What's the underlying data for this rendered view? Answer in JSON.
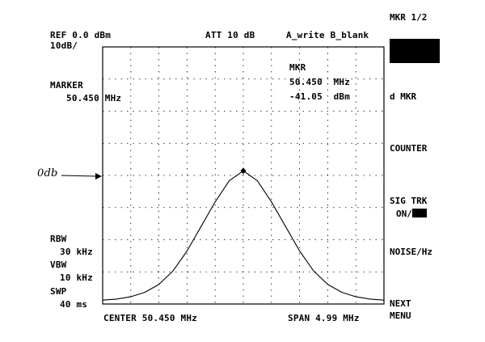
{
  "header": {
    "ref": "REF 0.0 dBm",
    "scale": "10dB/",
    "att": "ATT 10 dB",
    "trace_mode": "A_write B_blank"
  },
  "marker_left": {
    "label": "MARKER",
    "freq": "50.450 MHz"
  },
  "marker_readout": {
    "label": "MKR",
    "freq": "50.450  MHz",
    "level": "-41.05  dBm"
  },
  "annotation": {
    "handwritten": "0db"
  },
  "bandwidth": {
    "rbw_label": "RBW",
    "rbw_value": "30 kHz",
    "vbw_label": "VBW",
    "vbw_value": "10 kHz",
    "swp_label": "SWP",
    "swp_value": "40 ms"
  },
  "footer": {
    "center": "CENTER 50.450 MHz",
    "span": "SPAN 4.99 MHz"
  },
  "softkeys": {
    "mkr": "MKR 1/2",
    "d_mkr": "d MKR",
    "counter": "COUNTER",
    "sig_trk_1": "SIG TRK",
    "sig_trk_2": "ON/",
    "noise": "NOISE/Hz",
    "next_1": "NEXT",
    "next_2": "MENU"
  },
  "chart_data": {
    "type": "line",
    "title": "",
    "xlabel": "",
    "ylabel": "",
    "x_center_mhz": 50.45,
    "x_span_mhz": 4.99,
    "xlim": [
      47.955,
      52.945
    ],
    "ylim": [
      -100,
      0
    ],
    "grid": true,
    "marker": {
      "x": 50.45,
      "y": -41.05
    },
    "series": [
      {
        "x": [
          47.955,
          48.2,
          48.45,
          48.7,
          48.95,
          49.2,
          49.45,
          49.7,
          49.95,
          50.2,
          50.45,
          50.7,
          50.95,
          51.2,
          51.45,
          51.7,
          51.95,
          52.2,
          52.45,
          52.7,
          52.945
        ],
        "y": [
          -99,
          -98.5,
          -97.5,
          -95.5,
          -92,
          -86,
          -77,
          -66,
          -55,
          -45.5,
          -41.05,
          -45.5,
          -55,
          -66,
          -77,
          -86,
          -92,
          -95.5,
          -97.5,
          -98.5,
          -99
        ]
      }
    ]
  }
}
